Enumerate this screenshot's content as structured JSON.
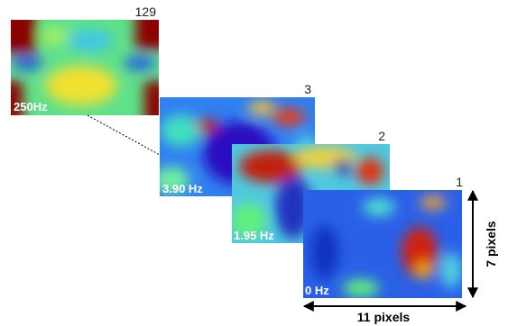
{
  "frames": [
    {
      "index": "129",
      "frequency": "250Hz"
    },
    {
      "index": "3",
      "frequency": "3.90 Hz"
    },
    {
      "index": "2",
      "frequency": "1.95 Hz"
    },
    {
      "index": "1",
      "frequency": "0 Hz"
    }
  ],
  "dimensions": {
    "height": "7 pixels",
    "width": "11 pixels"
  }
}
